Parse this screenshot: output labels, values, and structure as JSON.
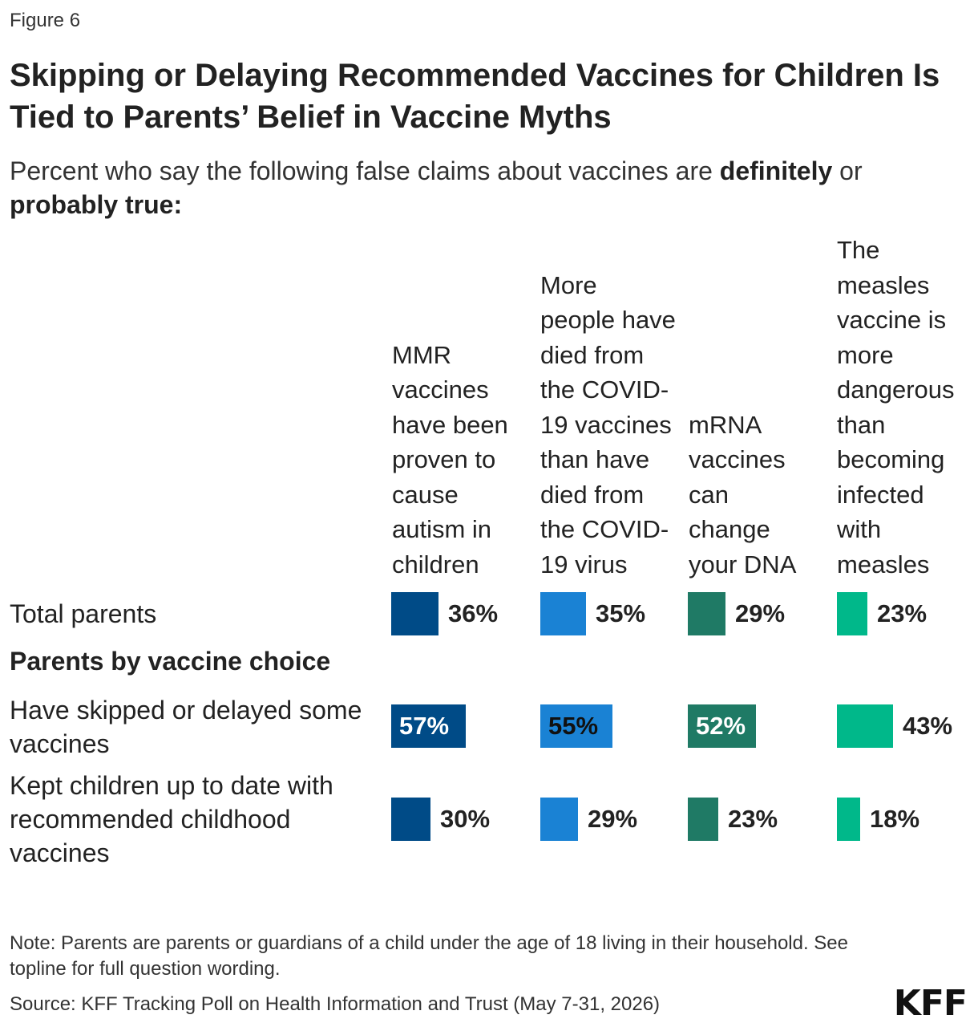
{
  "figure_label": "Figure 6",
  "title": "Skipping or Delaying Recommended Vaccines for Children Is Tied to Parents’ Belief in Vaccine Myths",
  "subtitle": {
    "pre": "Percent who say the following false claims about vaccines are ",
    "bold1": "definitely",
    "mid": " or ",
    "bold2": "probably true:"
  },
  "note": "Note: Parents are parents or guardians of a child under the age of 18 living in their household. See topline for full question wording.",
  "source": "Source: KFF Tracking Poll on Health Information and Trust (May 7-31, 2026)",
  "logo": "KFF",
  "colors": {
    "mmr": "#004b87",
    "covid": "#1a82d4",
    "mrna": "#1f7a65",
    "measles": "#00b88a"
  },
  "chart_data": {
    "type": "bar",
    "title": "Skipping or Delaying Recommended Vaccines for Children Is Tied to Parents’ Belief in Vaccine Myths",
    "categories": [
      "MMR vaccines have been proven to cause autism in children",
      "More people have died from the COVID-19 vaccines than have died from the COVID-19 virus",
      "mRNA vaccines can change your DNA",
      "The measles vaccine is more dangerous than becoming infected with measles"
    ],
    "group_label": "Parents by vaccine choice",
    "rows": [
      {
        "label": "Total parents",
        "values": [
          36,
          35,
          29,
          23
        ]
      },
      {
        "label": "Have skipped or delayed some vaccines",
        "values": [
          57,
          55,
          52,
          43
        ]
      },
      {
        "label": "Kept children up to date with recommended childhood vaccines",
        "values": [
          30,
          29,
          23,
          18
        ]
      }
    ],
    "unit": "%"
  }
}
